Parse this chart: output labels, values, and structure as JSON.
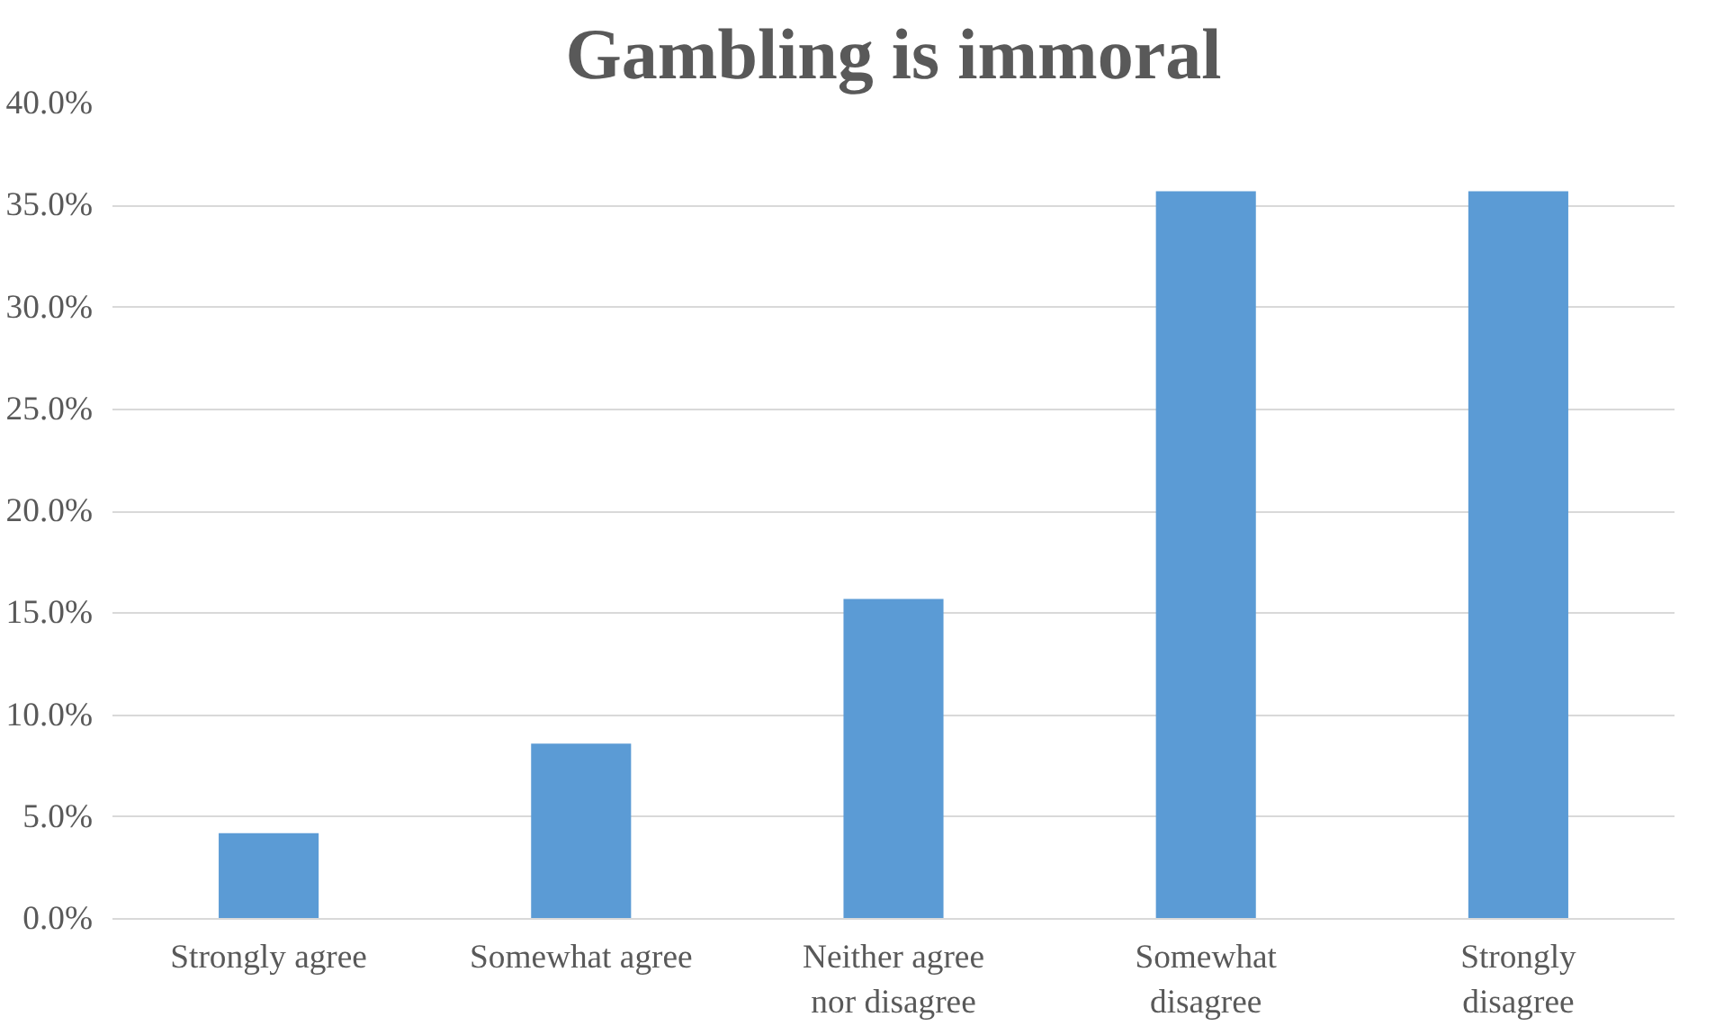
{
  "chart_data": {
    "type": "bar",
    "title": "Gambling is immoral",
    "categories": [
      "Strongly agree",
      "Somewhat agree",
      "Neither agree\nnor disagree",
      "Somewhat\ndisagree",
      "Strongly\ndisagree"
    ],
    "values": [
      4.2,
      8.6,
      15.7,
      35.7,
      35.7
    ],
    "color": "#5b9bd5",
    "ylim": [
      0,
      40
    ],
    "yticks": [
      {
        "value": 0,
        "label": "0.0%"
      },
      {
        "value": 5,
        "label": "5.0%"
      },
      {
        "value": 10,
        "label": "10.0%"
      },
      {
        "value": 15,
        "label": "15.0%"
      },
      {
        "value": 20,
        "label": "20.0%"
      },
      {
        "value": 25,
        "label": "25.0%"
      },
      {
        "value": 30,
        "label": "30.0%"
      },
      {
        "value": 35,
        "label": "35.0%"
      },
      {
        "value": 40,
        "label": "40.0%"
      }
    ],
    "grid": "y"
  }
}
